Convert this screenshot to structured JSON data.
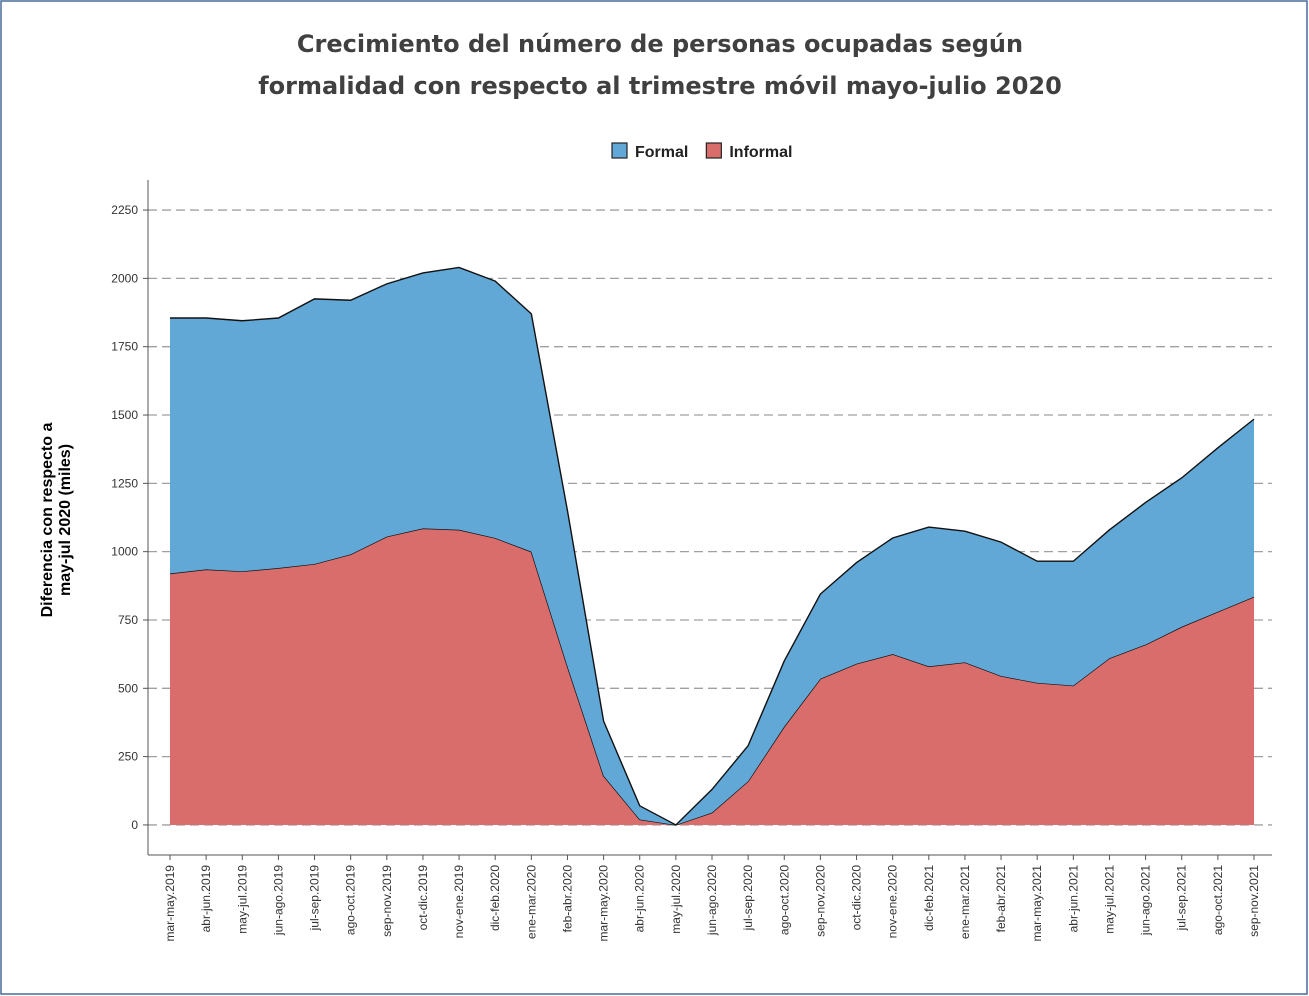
{
  "chart_data": {
    "type": "stacked_area",
    "title": [
      "Crecimiento del número de personas ocupadas según",
      "formalidad con respecto al trimestre móvil mayo-julio 2020"
    ],
    "y_label": [
      "Diferencia con respecto a",
      "may-jul 2020 (miles)"
    ],
    "categories": [
      "mar-may.2019",
      "abr-jun.2019",
      "may-jul.2019",
      "jun-ago.2019",
      "jul-sep.2019",
      "ago-oct.2019",
      "sep-nov.2019",
      "oct-dic.2019",
      "nov-ene.2019",
      "dic-feb.2020",
      "ene-mar.2020",
      "feb-abr.2020",
      "mar-may.2020",
      "abr-jun.2020",
      "may-jul.2020",
      "jun-ago.2020",
      "jul-sep.2020",
      "ago-oct.2020",
      "sep-nov.2020",
      "oct-dic.2020",
      "nov-ene.2020",
      "dic-feb.2021",
      "ene-mar.2021",
      "feb-abr.2021",
      "mar-may.2021",
      "abr-jun.2021",
      "may-jul.2021",
      "jun-ago.2021",
      "jul-sep.2021",
      "ago-oct.2021",
      "sep-nov.2021"
    ],
    "series": [
      {
        "name": "Formal",
        "color": "#62a8d7",
        "values": [
          935,
          920,
          917,
          915,
          970,
          930,
          925,
          935,
          960,
          940,
          870,
          570,
          200,
          50,
          0,
          85,
          130,
          240,
          310,
          370,
          425,
          510,
          480,
          490,
          445,
          455,
          470,
          520,
          545,
          600,
          650
        ]
      },
      {
        "name": "Informal",
        "color": "#d96d6b",
        "values": [
          920,
          935,
          928,
          940,
          955,
          990,
          1055,
          1085,
          1080,
          1050,
          1000,
          580,
          180,
          20,
          0,
          45,
          160,
          360,
          535,
          590,
          625,
          580,
          595,
          545,
          520,
          510,
          610,
          660,
          725,
          780,
          835
        ]
      }
    ],
    "ylim": [
      -110,
      2360
    ],
    "yticks": [
      0,
      250,
      500,
      750,
      1000,
      1250,
      1500,
      1750,
      2000,
      2250
    ],
    "grid": true,
    "legend": "top"
  }
}
